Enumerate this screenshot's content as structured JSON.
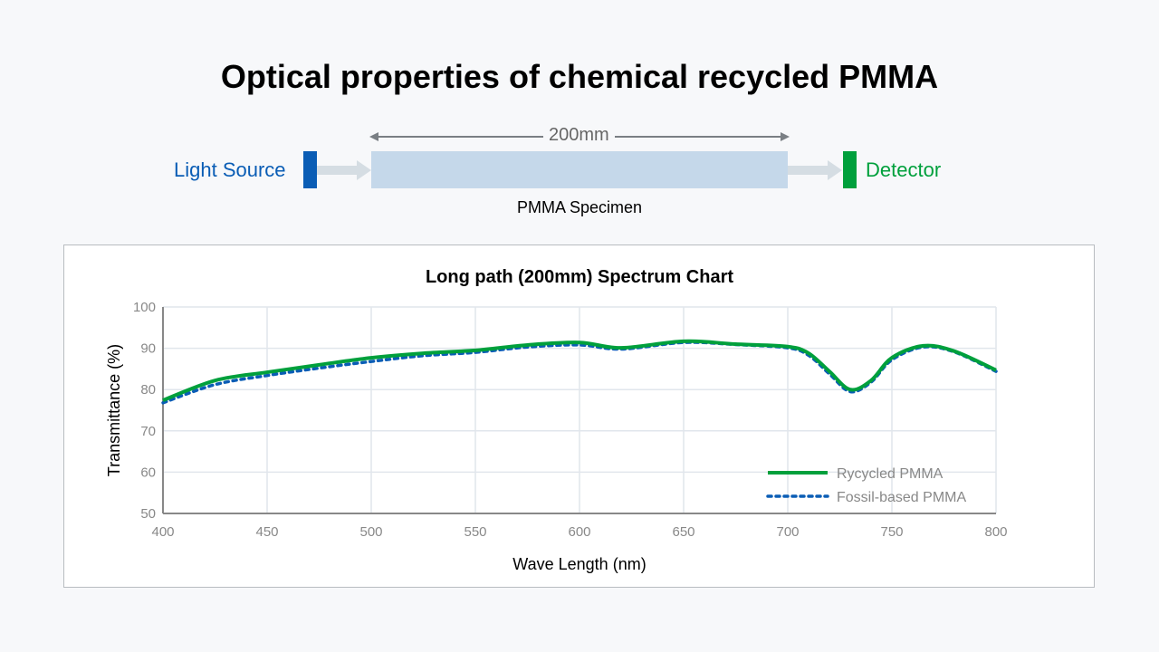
{
  "title": "Optical properties of chemical recycled PMMA",
  "diagram": {
    "source_label": "Light Source",
    "detector_label": "Detector",
    "specimen_label": "PMMA Specimen",
    "length_label": "200mm",
    "colors": {
      "source": "#0a5db5",
      "detector": "#00a03c",
      "specimen": "#c5d8ea"
    }
  },
  "chart_data": {
    "type": "line",
    "title": "Long path (200mm) Spectrum Chart",
    "xlabel": "Wave Length (nm)",
    "ylabel": "Transmittance (%)",
    "xlim": [
      400,
      800
    ],
    "ylim": [
      50,
      100
    ],
    "xticks": [
      400,
      450,
      500,
      550,
      600,
      650,
      700,
      750,
      800
    ],
    "yticks": [
      50,
      60,
      70,
      80,
      90,
      100
    ],
    "grid": true,
    "legend_position": "bottom-right",
    "x": [
      400,
      425,
      450,
      475,
      500,
      525,
      550,
      575,
      600,
      620,
      650,
      675,
      700,
      710,
      720,
      730,
      740,
      750,
      765,
      780,
      800
    ],
    "series": [
      {
        "name": "Rycycled PMMA",
        "color": "#00a03c",
        "style": "solid",
        "values": [
          77.4,
          82.2,
          84.2,
          86.0,
          87.7,
          88.8,
          89.5,
          90.8,
          91.4,
          90.1,
          91.7,
          91.0,
          90.4,
          88.8,
          84.4,
          80.0,
          82.2,
          87.7,
          90.6,
          89.3,
          84.7
        ]
      },
      {
        "name": "Fossil-based PMMA",
        "color": "#0a5db5",
        "style": "dotted",
        "values": [
          76.8,
          81.2,
          83.4,
          85.2,
          86.8,
          88.2,
          89.0,
          90.3,
          90.8,
          89.8,
          91.4,
          90.9,
          90.1,
          88.3,
          83.8,
          79.5,
          81.8,
          87.2,
          90.3,
          89.1,
          84.4
        ]
      }
    ]
  }
}
